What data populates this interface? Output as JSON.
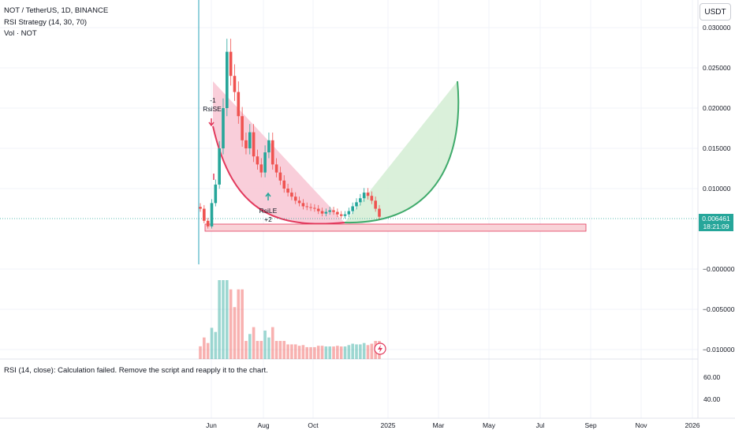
{
  "header": {
    "symbol_line": "NOT / TetherUS, 1D, BINANCE",
    "strategy_line": "RSI Strategy (14, 30, 70)",
    "volume_line": "Vol · NOT"
  },
  "currency_button": "USDT",
  "price_axis": {
    "ticks": [
      "0.030000",
      "0.025000",
      "0.020000",
      "0.015000",
      "0.010000",
      "−0.000000",
      "−0.005000",
      "−0.010000"
    ],
    "tick_values": [
      0.03,
      0.025,
      0.02,
      0.015,
      0.01,
      0,
      -0.005,
      -0.01
    ]
  },
  "current_price": {
    "value": "0.006461",
    "countdown": "18:21:09"
  },
  "time_axis": [
    "Jun",
    "Aug",
    "Oct",
    "2025",
    "Mar",
    "May",
    "Jul",
    "Sep",
    "Nov",
    "2026"
  ],
  "rsi_panel": {
    "message": "RSI (14, close): Calculation failed. Remove the script and reapply it to the chart.",
    "ticks": [
      "60.00",
      "40.00"
    ]
  },
  "annotations": {
    "short_entry": {
      "qty": "-1",
      "label": "RsiSE"
    },
    "long_entry": {
      "label": "RsiLE",
      "qty": "+2"
    }
  },
  "colors": {
    "up": "#26a69a",
    "down": "#ef5350",
    "cup_fill_red": "#f8c6d3",
    "cup_fill_green": "#d4edd4",
    "cup_line_red": "#e23a5d",
    "cup_line_green": "#3faa6b",
    "zone_fill": "#f9d3d8",
    "zone_border": "#e23a5d",
    "current_price_tag": "#26a69a",
    "grid": "#f0f3fa"
  },
  "chart_data": {
    "type": "candlestick",
    "title": "NOT / TetherUS, 1D, BINANCE",
    "ylim": [
      -0.0105,
      0.0315
    ],
    "note_values": "approximate daily close series read from chart",
    "closes": [
      0.0075,
      0.006,
      0.0053,
      0.0082,
      0.0105,
      0.015,
      0.02,
      0.027,
      0.024,
      0.022,
      0.019,
      0.016,
      0.015,
      0.017,
      0.014,
      0.013,
      0.012,
      0.0145,
      0.016,
      0.013,
      0.012,
      0.011,
      0.01,
      0.0095,
      0.009,
      0.0085,
      0.0082,
      0.0078,
      0.0077,
      0.0076,
      0.0075,
      0.0072,
      0.0069,
      0.0071,
      0.0073,
      0.0071,
      0.0068,
      0.0066,
      0.0068,
      0.0072,
      0.0078,
      0.0083,
      0.0088,
      0.0095,
      0.0091,
      0.0085,
      0.0075,
      0.0065
    ]
  }
}
